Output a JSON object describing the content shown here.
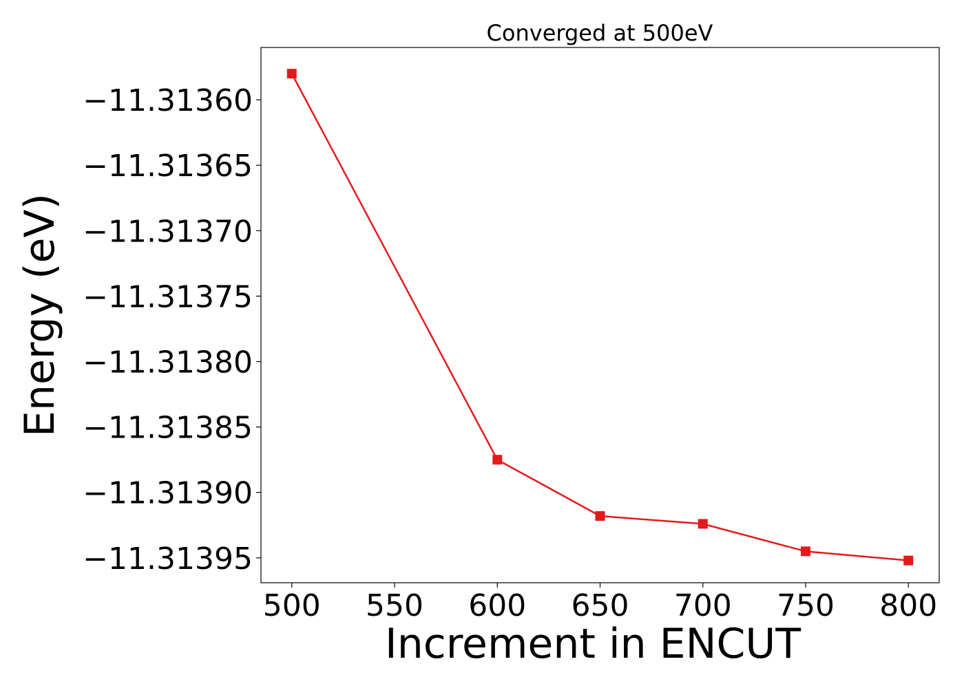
{
  "chart_data": {
    "type": "line",
    "title": "Converged at 500eV",
    "xlabel": "Increment in ENCUT",
    "ylabel": "Energy (eV)",
    "x": [
      500,
      600,
      650,
      700,
      750,
      800
    ],
    "series": [
      {
        "values": [
          -11.31358,
          -11.313875,
          -11.313918,
          -11.313924,
          -11.313945,
          -11.313952
        ],
        "color": "#e31a1c",
        "marker": "square"
      }
    ],
    "xlim": [
      485,
      815
    ],
    "ylim": [
      -11.313969,
      -11.31356
    ],
    "xticks": [
      500,
      550,
      600,
      650,
      700,
      750,
      800
    ],
    "xtick_labels": [
      "500",
      "550",
      "600",
      "650",
      "700",
      "750",
      "800"
    ],
    "yticks": [
      -11.3136,
      -11.31365,
      -11.3137,
      -11.31375,
      -11.3138,
      -11.31385,
      -11.3139,
      -11.31395
    ],
    "ytick_labels": [
      "−11.31360",
      "−11.31365",
      "−11.31370",
      "−11.31375",
      "−11.31380",
      "−11.31385",
      "−11.31390",
      "−11.31395"
    ],
    "grid": false,
    "legend": false
  }
}
